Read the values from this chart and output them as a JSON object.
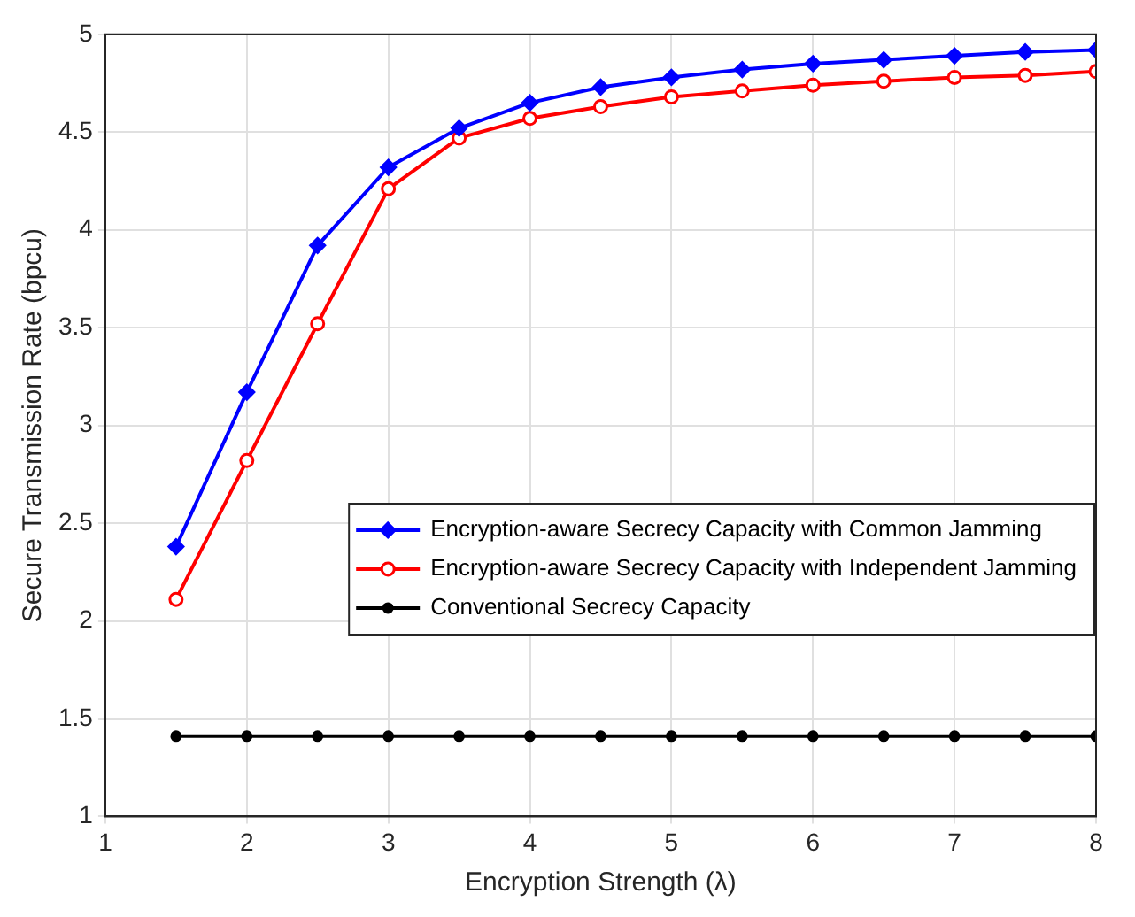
{
  "chart_data": {
    "type": "line",
    "xlabel": "Encryption Strength (λ)",
    "ylabel": "Secure Transmission Rate (bpcu)",
    "x": [
      1.5,
      2,
      2.5,
      3,
      3.5,
      4,
      4.5,
      5,
      5.5,
      6,
      6.5,
      7,
      7.5,
      8
    ],
    "series": [
      {
        "name": "Encryption-aware Secrecy Capacity with Common Jamming",
        "color": "#0000ff",
        "marker": "diamond",
        "values": [
          2.38,
          3.17,
          3.92,
          4.32,
          4.52,
          4.65,
          4.73,
          4.78,
          4.82,
          4.85,
          4.87,
          4.89,
          4.91,
          4.92
        ]
      },
      {
        "name": "Encryption-aware Secrecy Capacity with Independent Jamming",
        "color": "#ff0000",
        "marker": "circle",
        "values": [
          2.11,
          2.82,
          3.52,
          4.21,
          4.47,
          4.57,
          4.63,
          4.68,
          4.71,
          4.74,
          4.76,
          4.78,
          4.79,
          4.81
        ]
      },
      {
        "name": "Conventional Secrecy Capacity",
        "color": "#000000",
        "marker": "circle",
        "values": [
          1.41,
          1.41,
          1.41,
          1.41,
          1.41,
          1.41,
          1.41,
          1.41,
          1.41,
          1.41,
          1.41,
          1.41,
          1.41,
          1.41
        ]
      }
    ],
    "xlim": [
      1,
      8
    ],
    "xticks": [
      1,
      2,
      3,
      4,
      5,
      6,
      7,
      8
    ],
    "ylim": [
      1,
      5
    ],
    "yticks": [
      1,
      1.5,
      2,
      2.5,
      3,
      3.5,
      4,
      4.5,
      5
    ],
    "grid": true,
    "legend": "right",
    "line_style": "solid"
  }
}
